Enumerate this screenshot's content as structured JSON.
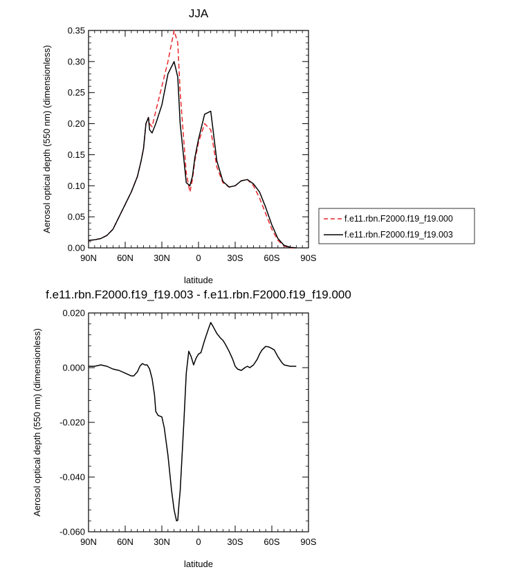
{
  "chart_data": [
    {
      "type": "line",
      "title": "JJA",
      "xlabel": "latitude",
      "ylabel": "Aerosol optical depth (550 nm) (dimensionless)",
      "xlim": [
        90,
        -90
      ],
      "ylim": [
        0,
        0.35
      ],
      "x_ticks": [
        90,
        60,
        30,
        0,
        -30,
        -60,
        -90
      ],
      "x_tick_labels": [
        "90N",
        "60N",
        "30N",
        "0",
        "30S",
        "60S",
        "90S"
      ],
      "y_ticks": [
        0,
        0.05,
        0.1,
        0.15,
        0.2,
        0.25,
        0.3,
        0.35
      ],
      "y_tick_labels": [
        "0.00",
        "0.05",
        "0.10",
        "0.15",
        "0.20",
        "0.25",
        "0.30",
        "0.35"
      ],
      "legend_position": "right",
      "series": [
        {
          "name": "f.e11.rbn.F2000.f19_f19.000",
          "color": "#e8262a",
          "dash": "dashed",
          "x": [
            90,
            85,
            80,
            75,
            70,
            65,
            60,
            55,
            50,
            47,
            45,
            43,
            42,
            41,
            40,
            38,
            35,
            30,
            25,
            20,
            17,
            15,
            10,
            7,
            5,
            3,
            0,
            -5,
            -10,
            -15,
            -20,
            -25,
            -30,
            -35,
            -40,
            -45,
            -50,
            -55,
            -60,
            -65,
            -70,
            -75,
            -80
          ],
          "values": [
            0.012,
            0.013,
            0.015,
            0.02,
            0.03,
            0.05,
            0.07,
            0.09,
            0.115,
            0.14,
            0.16,
            0.2,
            0.205,
            0.21,
            0.2,
            0.195,
            0.22,
            0.26,
            0.3,
            0.35,
            0.33,
            0.25,
            0.12,
            0.09,
            0.11,
            0.14,
            0.17,
            0.2,
            0.19,
            0.13,
            0.105,
            0.098,
            0.1,
            0.108,
            0.11,
            0.1,
            0.08,
            0.055,
            0.03,
            0.012,
            0.003,
            0.0,
            0.0
          ]
        },
        {
          "name": "f.e11.rbn.F2000.f19_f19.003",
          "color": "#000000",
          "dash": "solid",
          "x": [
            90,
            85,
            80,
            75,
            70,
            65,
            60,
            55,
            50,
            47,
            45,
            43,
            42,
            41,
            40,
            38,
            35,
            30,
            25,
            20,
            17,
            15,
            10,
            7,
            5,
            3,
            0,
            -5,
            -10,
            -15,
            -20,
            -25,
            -30,
            -35,
            -40,
            -45,
            -50,
            -55,
            -60,
            -65,
            -70,
            -75,
            -80
          ],
          "values": [
            0.012,
            0.013,
            0.015,
            0.02,
            0.03,
            0.05,
            0.07,
            0.09,
            0.115,
            0.14,
            0.16,
            0.2,
            0.205,
            0.21,
            0.19,
            0.185,
            0.2,
            0.23,
            0.28,
            0.3,
            0.275,
            0.2,
            0.105,
            0.1,
            0.115,
            0.145,
            0.175,
            0.215,
            0.22,
            0.14,
            0.107,
            0.098,
            0.1,
            0.108,
            0.11,
            0.103,
            0.09,
            0.065,
            0.037,
            0.015,
            0.004,
            0.001,
            0.0
          ]
        }
      ]
    },
    {
      "type": "line",
      "title": "f.e11.rbn.F2000.f19_f19.003 - f.e11.rbn.F2000.f19_f19.000",
      "xlabel": "latitude",
      "ylabel": "Aerosol optical depth (550 nm) (dimensionless)",
      "xlim": [
        90,
        -90
      ],
      "ylim": [
        -0.06,
        0.02
      ],
      "x_ticks": [
        90,
        60,
        30,
        0,
        -30,
        -60,
        -90
      ],
      "x_tick_labels": [
        "90N",
        "60N",
        "30N",
        "0",
        "30S",
        "60S",
        "90S"
      ],
      "y_ticks": [
        -0.06,
        -0.04,
        -0.02,
        0,
        0.02
      ],
      "y_tick_labels": [
        "-0.060",
        "-0.040",
        "-0.020",
        "0.000",
        "0.020"
      ],
      "series": [
        {
          "color": "#000000",
          "dash": "solid",
          "x": [
            90,
            85,
            80,
            75,
            70,
            65,
            60,
            55,
            53,
            50,
            48,
            46,
            44,
            42,
            40,
            38,
            36,
            35,
            33,
            30,
            28,
            25,
            22,
            20,
            18,
            17,
            16,
            15,
            12,
            10,
            8,
            6,
            4,
            2,
            0,
            -2,
            -5,
            -8,
            -10,
            -12,
            -15,
            -18,
            -20,
            -22,
            -25,
            -28,
            -30,
            -32,
            -35,
            -38,
            -40,
            -42,
            -45,
            -48,
            -50,
            -52,
            -55,
            -58,
            -60,
            -62,
            -65,
            -68,
            -70,
            -75,
            -80
          ],
          "values": [
            0.0005,
            0.0005,
            0.001,
            0.0005,
            -0.0005,
            -0.001,
            -0.002,
            -0.003,
            -0.003,
            -0.0015,
            0.0005,
            0.0015,
            0.001,
            0.001,
            -0.0005,
            -0.004,
            -0.01,
            -0.016,
            -0.0175,
            -0.018,
            -0.022,
            -0.032,
            -0.045,
            -0.052,
            -0.056,
            -0.0558,
            -0.05,
            -0.045,
            -0.02,
            -0.002,
            0.006,
            0.004,
            0.001,
            0.0035,
            0.005,
            0.0055,
            0.01,
            0.014,
            0.0165,
            0.015,
            0.0125,
            0.0108,
            0.01,
            0.0085,
            0.006,
            0.003,
            0.0005,
            -0.0005,
            -0.001,
            0.0,
            0.0005,
            0.0,
            0.001,
            0.003,
            0.005,
            0.0065,
            0.0078,
            0.0075,
            0.007,
            0.0065,
            0.004,
            0.002,
            0.001,
            0.0005,
            0.0005
          ]
        }
      ]
    }
  ]
}
